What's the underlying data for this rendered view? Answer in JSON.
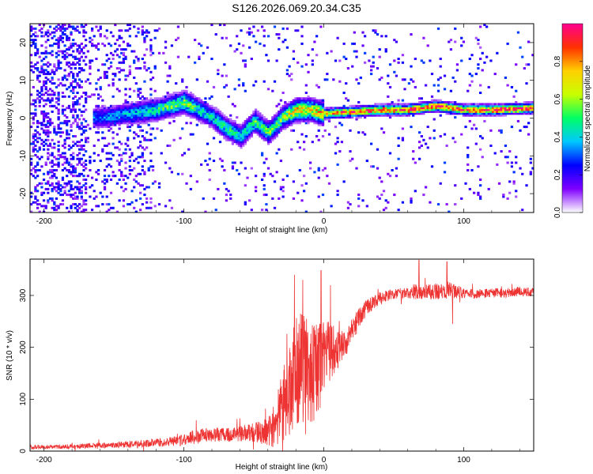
{
  "title": "S126.2026.069.20.34.C35",
  "chart_data": [
    {
      "type": "heatmap",
      "name": "spectrogram",
      "xlabel": "Height of straight line (km)",
      "ylabel": "Frequency (Hz)",
      "xlim": [
        -210,
        150
      ],
      "ylim": [
        -25,
        25
      ],
      "xticks": [
        -200,
        -100,
        0,
        100
      ],
      "yticks": [
        -20,
        -10,
        0,
        10,
        20
      ],
      "colorbar": {
        "label": "Normalized spectral amplitude",
        "range": [
          0,
          1
        ],
        "ticks": [
          0.0,
          0.2,
          0.4,
          0.6,
          0.8
        ],
        "colors": [
          "#ffffff",
          "#7f00ff",
          "#0000ff",
          "#00c8ff",
          "#00ff64",
          "#c8ff00",
          "#ffd000",
          "#ff3000",
          "#ff0090"
        ]
      },
      "ridge": {
        "x": [
          -160,
          -140,
          -120,
          -100,
          -90,
          -80,
          -70,
          -60,
          -50,
          -40,
          -30,
          -20,
          -10,
          0,
          20,
          40,
          60,
          80,
          100,
          120,
          150
        ],
        "freq": [
          0,
          1,
          2,
          4,
          2,
          0,
          -3,
          -5,
          -1,
          -4,
          0,
          2,
          2,
          1,
          1.5,
          2,
          2,
          3,
          2,
          2,
          2.5
        ],
        "amp": [
          0.3,
          0.35,
          0.45,
          0.55,
          0.45,
          0.4,
          0.45,
          0.4,
          0.5,
          0.5,
          0.55,
          0.7,
          0.7,
          0.75,
          0.85,
          0.88,
          0.9,
          0.92,
          0.9,
          0.92,
          0.9
        ]
      }
    },
    {
      "type": "line",
      "name": "snr",
      "xlabel": "Height of straight line (km)",
      "ylabel": "SNR (10 * v/v)",
      "xlim": [
        -210,
        150
      ],
      "ylim": [
        0,
        370
      ],
      "xticks": [
        -200,
        -100,
        0,
        100
      ],
      "yticks": [
        0,
        100,
        200,
        300
      ],
      "color": "#ee3333",
      "series": [
        {
          "name": "SNR",
          "x": [
            -210,
            -190,
            -170,
            -150,
            -130,
            -110,
            -100,
            -90,
            -80,
            -70,
            -60,
            -50,
            -40,
            -35,
            -30,
            -25,
            -20,
            -15,
            -10,
            -5,
            0,
            5,
            10,
            15,
            20,
            25,
            30,
            40,
            50,
            60,
            70,
            80,
            90,
            100,
            110,
            120,
            130,
            140,
            150
          ],
          "y": [
            8,
            8,
            10,
            12,
            14,
            18,
            22,
            28,
            32,
            30,
            34,
            36,
            38,
            50,
            80,
            120,
            150,
            160,
            150,
            155,
            180,
            195,
            200,
            210,
            230,
            255,
            275,
            295,
            303,
            305,
            305,
            308,
            310,
            305,
            302,
            305,
            305,
            308,
            307
          ],
          "noise": [
            4,
            4,
            5,
            6,
            7,
            9,
            12,
            14,
            14,
            14,
            15,
            18,
            28,
            45,
            70,
            95,
            110,
            110,
            100,
            90,
            70,
            55,
            40,
            30,
            25,
            20,
            15,
            12,
            10,
            10,
            14,
            16,
            18,
            10,
            9,
            9,
            9,
            9,
            9
          ]
        }
      ],
      "spikes": [
        {
          "x": -21,
          "y": 340
        },
        {
          "x": -15,
          "y": 330
        },
        {
          "x": -2,
          "y": 348
        },
        {
          "x": 68,
          "y": 368
        },
        {
          "x": 88,
          "y": 365
        },
        {
          "x": 92,
          "y": 245
        }
      ]
    }
  ]
}
